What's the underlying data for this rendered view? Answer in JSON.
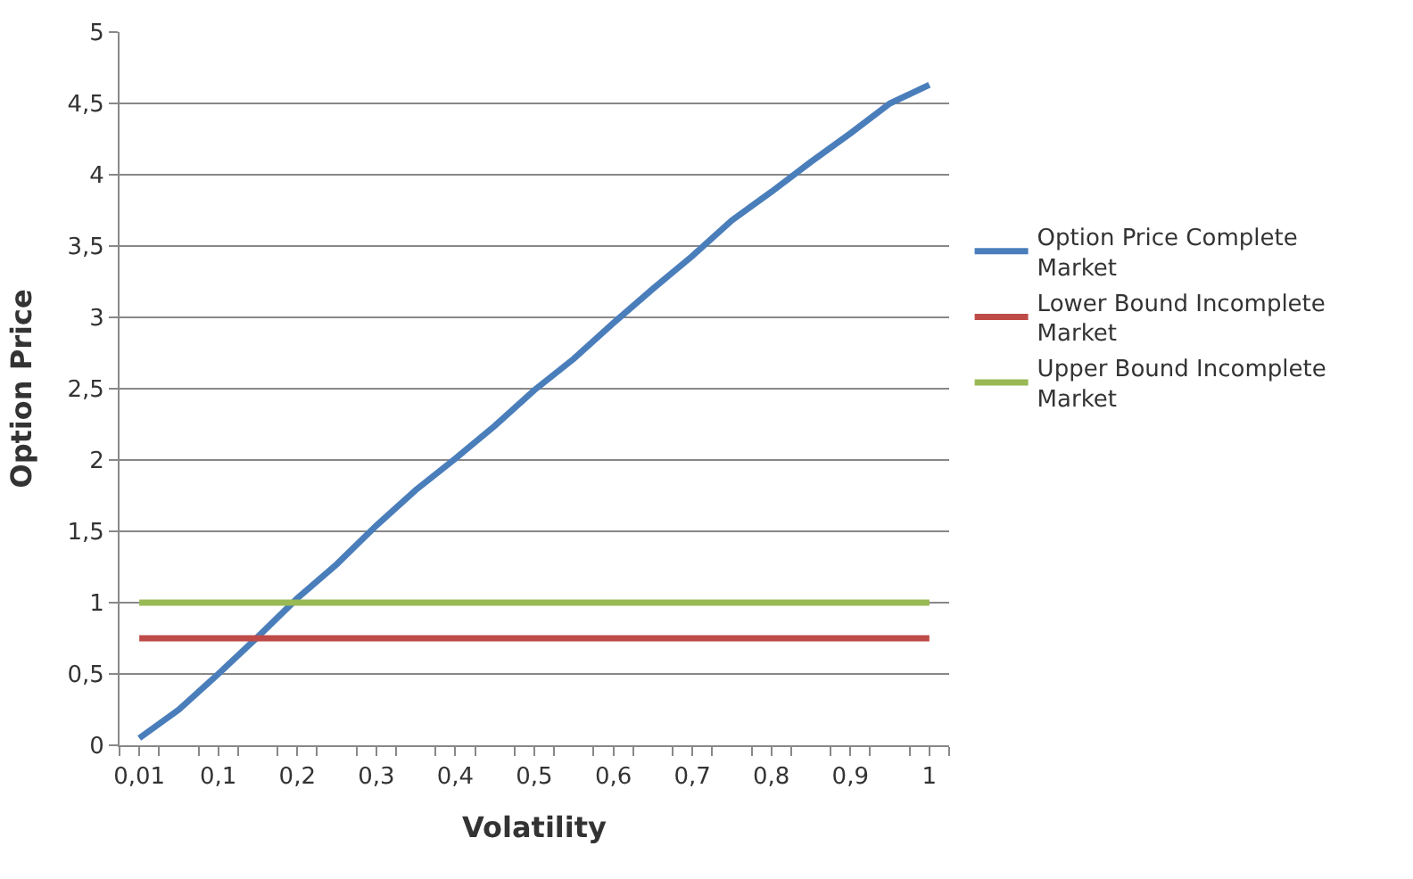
{
  "chart_data": {
    "type": "line",
    "xlabel": "Volatility",
    "ylabel": "Option Price",
    "categories": [
      "0,01",
      null,
      "0,1",
      null,
      "0,2",
      null,
      "0,3",
      null,
      "0,4",
      null,
      "0,5",
      null,
      "0,6",
      null,
      "0,7",
      null,
      "0,8",
      null,
      "0,9",
      null,
      "1"
    ],
    "series": [
      {
        "name": "Option Price Complete Market",
        "color": "#4a7ebb",
        "values": [
          0.05,
          0.25,
          0.5,
          0.76,
          1.03,
          1.27,
          1.54,
          1.79,
          2.01,
          2.24,
          2.49,
          2.71,
          2.96,
          3.2,
          3.43,
          3.68,
          3.88,
          4.09,
          4.29,
          4.5,
          4.63
        ]
      },
      {
        "name": "Lower Bound Incomplete Market",
        "color": "#be4b48",
        "values": [
          0.75,
          0.75,
          0.75,
          0.75,
          0.75,
          0.75,
          0.75,
          0.75,
          0.75,
          0.75,
          0.75,
          0.75,
          0.75,
          0.75,
          0.75,
          0.75,
          0.75,
          0.75,
          0.75,
          0.75,
          0.75
        ]
      },
      {
        "name": "Upper Bound Incomplete Market",
        "color": "#98b954",
        "values": [
          1,
          1,
          1,
          1,
          1,
          1,
          1,
          1,
          1,
          1,
          1,
          1,
          1,
          1,
          1,
          1,
          1,
          1,
          1,
          1,
          1
        ]
      }
    ],
    "ylim": [
      0,
      5
    ],
    "yticks": [
      0,
      {
        "value": 0.5,
        "label": "0,5"
      },
      1,
      {
        "value": 1.5,
        "label": "1,5"
      },
      2,
      {
        "value": 2.5,
        "label": "2,5"
      },
      3,
      {
        "value": 3.5,
        "label": "3,5"
      },
      4,
      {
        "value": 4.5,
        "label": "4,5"
      },
      5
    ],
    "grid": "y",
    "legend": "right",
    "marker": "none",
    "line_style": "solid"
  }
}
